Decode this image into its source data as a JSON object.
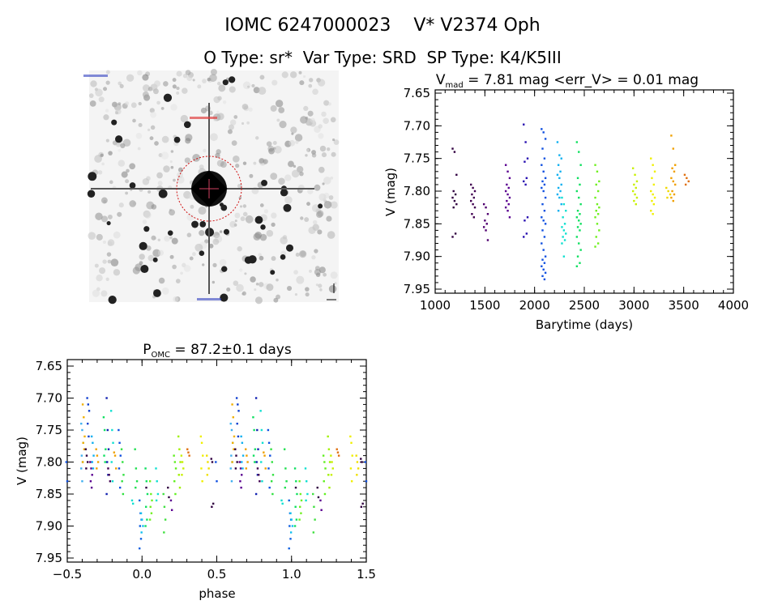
{
  "header": {
    "title": "IOMC 6247000023    V* V2374 Oph",
    "subtitle": "O Type: sr*  Var Type: SRD  SP Type: K4/K5III"
  },
  "finder_image": {
    "description_icon": "star-field-image",
    "marker_color": "#d01010"
  },
  "chart_data": [
    {
      "type": "scatter",
      "title_main": "V",
      "title_sub": "mad",
      "title_rest": " = 7.81 mag <err_V> = 0.01 mag",
      "xlabel": "Barytime (days)",
      "ylabel": "V (mag)",
      "xlim": [
        1000,
        4000
      ],
      "ylim": [
        7.95,
        7.65
      ],
      "y_inverted": true,
      "xticks": [
        "1000",
        "1500",
        "2000",
        "2500",
        "3000",
        "3500",
        "4000"
      ],
      "yticks": [
        "7.65",
        "7.70",
        "7.75",
        "7.80",
        "7.85",
        "7.90",
        "7.95"
      ],
      "grid": false,
      "groups": [
        {
          "t": 1195,
          "color": "#300040",
          "mags": [
            7.735,
            7.74,
            7.775,
            7.8,
            7.805,
            7.81,
            7.815,
            7.82,
            7.825,
            7.865,
            7.87
          ]
        },
        {
          "t": 1380,
          "color": "#400050",
          "mags": [
            7.79,
            7.795,
            7.8,
            7.805,
            7.81,
            7.815,
            7.82,
            7.825,
            7.835,
            7.84
          ]
        },
        {
          "t": 1510,
          "color": "#500070",
          "mags": [
            7.82,
            7.825,
            7.835,
            7.845,
            7.85,
            7.855,
            7.86,
            7.875
          ]
        },
        {
          "t": 1730,
          "color": "#5a0090",
          "mags": [
            7.76,
            7.77,
            7.78,
            7.79,
            7.795,
            7.8,
            7.805,
            7.81,
            7.815,
            7.82,
            7.825,
            7.83,
            7.84
          ]
        },
        {
          "t": 1910,
          "color": "#2810b0",
          "mags": [
            7.698,
            7.725,
            7.75,
            7.755,
            7.78,
            7.785,
            7.79,
            7.84,
            7.845,
            7.865,
            7.87
          ]
        },
        {
          "t": 2090,
          "color": "#1050e0",
          "mags": [
            7.705,
            7.71,
            7.72,
            7.735,
            7.75,
            7.76,
            7.77,
            7.78,
            7.785,
            7.79,
            7.795,
            7.8,
            7.81,
            7.82,
            7.83,
            7.84,
            7.845,
            7.85,
            7.86,
            7.87,
            7.88,
            7.89,
            7.9,
            7.905,
            7.91,
            7.915,
            7.92,
            7.925,
            7.93,
            7.935
          ]
        },
        {
          "t": 2250,
          "color": "#10b0f0",
          "mags": [
            7.725,
            7.745,
            7.75,
            7.76,
            7.77,
            7.775,
            7.78,
            7.79,
            7.795,
            7.8,
            7.805,
            7.81,
            7.82,
            7.83
          ]
        },
        {
          "t": 2295,
          "color": "#10e0d0",
          "mags": [
            7.81,
            7.82,
            7.83,
            7.84,
            7.85,
            7.855,
            7.86,
            7.865,
            7.87,
            7.875,
            7.88,
            7.9
          ]
        },
        {
          "t": 2445,
          "color": "#10e060",
          "mags": [
            7.725,
            7.74,
            7.76,
            7.78,
            7.79,
            7.8,
            7.81,
            7.82,
            7.83,
            7.835,
            7.84,
            7.845,
            7.85,
            7.855,
            7.86,
            7.87,
            7.88,
            7.89,
            7.9,
            7.91,
            7.915
          ]
        },
        {
          "t": 2630,
          "color": "#70f020",
          "mags": [
            7.76,
            7.77,
            7.785,
            7.79,
            7.8,
            7.81,
            7.82,
            7.825,
            7.83,
            7.835,
            7.84,
            7.85,
            7.86,
            7.87,
            7.88,
            7.885
          ]
        },
        {
          "t": 3010,
          "color": "#c8f000",
          "mags": [
            7.765,
            7.775,
            7.785,
            7.79,
            7.795,
            7.8,
            7.805,
            7.81,
            7.815,
            7.82
          ]
        },
        {
          "t": 3190,
          "color": "#f0f000",
          "mags": [
            7.75,
            7.76,
            7.77,
            7.78,
            7.79,
            7.8,
            7.805,
            7.81,
            7.815,
            7.82,
            7.83,
            7.835
          ]
        },
        {
          "t": 3345,
          "color": "#f0d800",
          "mags": [
            7.795,
            7.8,
            7.805,
            7.81
          ]
        },
        {
          "t": 3395,
          "color": "#f0a000",
          "mags": [
            7.715,
            7.735,
            7.76,
            7.765,
            7.77,
            7.78,
            7.785,
            7.79,
            7.8,
            7.805,
            7.81,
            7.815
          ]
        },
        {
          "t": 3530,
          "color": "#e07010",
          "mags": [
            7.775,
            7.78,
            7.785,
            7.79
          ]
        }
      ]
    },
    {
      "type": "scatter",
      "title_main": "P",
      "title_sub": "OMC",
      "title_rest": " = 87.2±0.1 days",
      "xlabel": "phase",
      "ylabel": "V (mag)",
      "xlim": [
        -0.5,
        1.5
      ],
      "ylim": [
        7.95,
        7.65
      ],
      "y_inverted": true,
      "xticks": [
        "-0.5",
        "0.0",
        "0.5",
        "1.0",
        "1.5"
      ],
      "yticks": [
        "7.65",
        "7.70",
        "7.75",
        "7.80",
        "7.85",
        "7.90",
        "7.95"
      ],
      "grid": false,
      "folded_repeats": true,
      "groups": [
        {
          "phase": 0.6,
          "color": "#40b0f0",
          "mags": [
            7.74,
            7.75,
            7.77,
            7.79,
            7.8,
            7.81,
            7.83
          ]
        },
        {
          "phase": 0.61,
          "color": "#f0b000",
          "mags": [
            7.71,
            7.73,
            7.76,
            7.77,
            7.78,
            7.8
          ]
        },
        {
          "phase": 0.63,
          "color": "#300040",
          "mags": [
            7.78,
            7.79,
            7.8,
            7.81
          ]
        },
        {
          "phase": 0.64,
          "color": "#1040d0",
          "mags": [
            7.7,
            7.71,
            7.72,
            7.74,
            7.76
          ]
        },
        {
          "phase": 0.66,
          "color": "#5a0090",
          "mags": [
            7.8,
            7.81,
            7.82,
            7.83,
            7.84
          ]
        },
        {
          "phase": 0.67,
          "color": "#10b0f0",
          "mags": [
            7.76,
            7.77,
            7.79,
            7.8,
            7.81
          ]
        },
        {
          "phase": 0.7,
          "color": "#f0a000",
          "mags": [
            7.78,
            7.79,
            7.8,
            7.81
          ]
        },
        {
          "phase": 0.75,
          "color": "#10e060",
          "mags": [
            7.73,
            7.75,
            7.78,
            7.79,
            7.8
          ]
        },
        {
          "phase": 0.77,
          "color": "#1020b0",
          "mags": [
            7.7,
            7.75,
            7.78,
            7.8,
            7.82,
            7.85
          ]
        },
        {
          "phase": 0.78,
          "color": "#400050",
          "mags": [
            7.81,
            7.82,
            7.83
          ]
        },
        {
          "phase": 0.8,
          "color": "#10e0d0",
          "mags": [
            7.72,
            7.75,
            7.77,
            7.8,
            7.83
          ]
        },
        {
          "phase": 0.82,
          "color": "#f0a000",
          "mags": [
            7.785,
            7.79,
            7.81
          ]
        },
        {
          "phase": 0.85,
          "color": "#1050e0",
          "mags": [
            7.75,
            7.77,
            7.79,
            7.81,
            7.84
          ]
        },
        {
          "phase": 0.87,
          "color": "#30e040",
          "mags": [
            7.78,
            7.8,
            7.82,
            7.83,
            7.85
          ]
        },
        {
          "phase": 0.94,
          "color": "#10e0d0",
          "mags": [
            7.86,
            7.865
          ]
        },
        {
          "phase": 0.96,
          "color": "#20e050",
          "mags": [
            7.78,
            7.81,
            7.83,
            7.84
          ]
        },
        {
          "phase": 0.99,
          "color": "#1060e0",
          "mags": [
            7.86,
            7.88,
            7.89,
            7.9,
            7.92,
            7.935
          ]
        },
        {
          "phase": 0.0,
          "color": "#10c0f0",
          "mags": [
            7.88,
            7.89,
            7.9,
            7.91
          ]
        },
        {
          "phase": 0.03,
          "color": "#10e060",
          "mags": [
            7.81,
            7.83,
            7.85,
            7.87,
            7.89,
            7.9
          ]
        },
        {
          "phase": 0.035,
          "color": "#300040",
          "mags": [
            7.84
          ]
        },
        {
          "phase": 0.06,
          "color": "#70f020",
          "mags": [
            7.83,
            7.85,
            7.86,
            7.87,
            7.88,
            7.89
          ]
        },
        {
          "phase": 0.1,
          "color": "#10e0d0",
          "mags": [
            7.81,
            7.83,
            7.85,
            7.86
          ]
        },
        {
          "phase": 0.15,
          "color": "#40e040",
          "mags": [
            7.85,
            7.87,
            7.89,
            7.91
          ]
        },
        {
          "phase": 0.18,
          "color": "#300040",
          "mags": [
            7.84,
            7.855
          ]
        },
        {
          "phase": 0.2,
          "color": "#5a0090",
          "mags": [
            7.86,
            7.875
          ]
        },
        {
          "phase": 0.22,
          "color": "#60f020",
          "mags": [
            7.79,
            7.8,
            7.81,
            7.83,
            7.85
          ]
        },
        {
          "phase": 0.25,
          "color": "#a0f000",
          "mags": [
            7.76,
            7.78,
            7.8,
            7.82,
            7.84
          ]
        },
        {
          "phase": 0.27,
          "color": "#c8f000",
          "mags": [
            7.79,
            7.8,
            7.81,
            7.82
          ]
        },
        {
          "phase": 0.31,
          "color": "#e07010",
          "mags": [
            7.78,
            7.785,
            7.79
          ]
        },
        {
          "phase": 0.4,
          "color": "#f0f000",
          "mags": [
            7.76,
            7.77,
            7.79,
            7.81,
            7.83
          ]
        },
        {
          "phase": 0.44,
          "color": "#f0e000",
          "mags": [
            7.79,
            7.8,
            7.81,
            7.82
          ]
        },
        {
          "phase": 0.47,
          "color": "#300040",
          "mags": [
            7.795,
            7.8,
            7.865,
            7.87
          ]
        },
        {
          "phase": 0.5,
          "color": "#1050e0",
          "mags": [
            7.8,
            7.83
          ]
        }
      ]
    }
  ]
}
